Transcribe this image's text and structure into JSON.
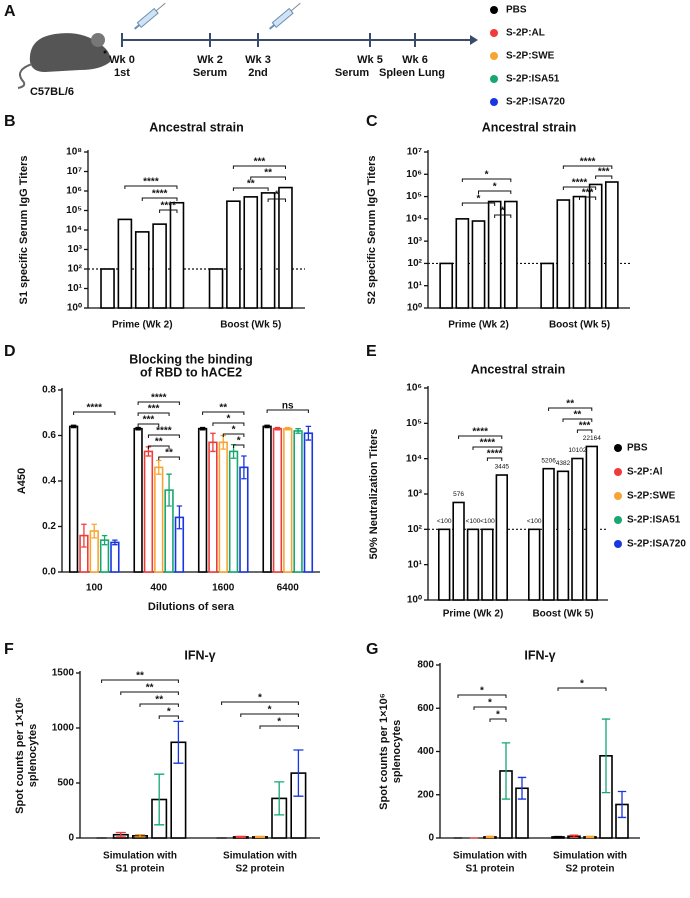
{
  "timeline": {
    "panel": "A",
    "strain": "C57BL/6",
    "points": [
      {
        "label": "Wk 0",
        "sub": "1st",
        "color": "#e02020"
      },
      {
        "label": "Wk 2",
        "sub": "Serum",
        "color": "#111111"
      },
      {
        "label": "Wk 3",
        "sub": "2nd",
        "color": "#e02020"
      },
      {
        "label": "Wk 5",
        "sub": "Serum",
        "color": "#111111"
      },
      {
        "label": "Wk 6",
        "sub": "Spleen Lung",
        "color": "#111111"
      }
    ]
  },
  "legend": [
    {
      "name": "PBS",
      "color": "#000000"
    },
    {
      "name": "S-2P:AL",
      "color": "#ef3b3b"
    },
    {
      "name": "S-2P:SWE",
      "color": "#f7a531"
    },
    {
      "name": "S-2P:ISA51",
      "color": "#16a870"
    },
    {
      "name": "S-2P:ISA720",
      "color": "#1936e0"
    }
  ],
  "chart_data": [
    {
      "panel": "B",
      "type": "bar",
      "title": "Ancestral strain",
      "ylabel": "S1 specific Serum IgG Titers",
      "log": true,
      "ylim": [
        1,
        100000000
      ],
      "yticks": [
        {
          "value": 1,
          "label": "10⁰"
        },
        {
          "value": 10,
          "label": "10¹"
        },
        {
          "value": 100,
          "label": "10²"
        },
        {
          "value": 1000,
          "label": "10³"
        },
        {
          "value": 10000,
          "label": "10⁴"
        },
        {
          "value": 100000,
          "label": "10⁵"
        },
        {
          "value": 1000000,
          "label": "10⁶"
        },
        {
          "value": 10000000,
          "label": "10⁷"
        },
        {
          "value": 100000000,
          "label": "10⁸"
        }
      ],
      "categories": [
        "Prime (Wk 2)",
        "Boost (Wk 5)"
      ],
      "edgecolor": "#000000",
      "reference_line": 100,
      "series": [
        {
          "color": "#000000",
          "values": [
            100,
            100
          ]
        },
        {
          "color": "#ef3b3b",
          "values": [
            35000,
            300000
          ]
        },
        {
          "color": "#f7a531",
          "values": [
            8000,
            500000
          ]
        },
        {
          "color": "#16a870",
          "values": [
            20000,
            800000
          ]
        },
        {
          "color": "#1936e0",
          "values": [
            250000,
            1500000
          ]
        }
      ],
      "annotations": [
        "****",
        "****",
        "****",
        "***",
        "**",
        "**",
        "*"
      ]
    },
    {
      "panel": "C",
      "type": "bar",
      "title": "Ancestral strain",
      "ylabel": "S2 specific Serum IgG Titers",
      "log": true,
      "ylim": [
        1,
        10000000
      ],
      "yticks": [
        {
          "value": 1,
          "label": "10⁰"
        },
        {
          "value": 10,
          "label": "10¹"
        },
        {
          "value": 100,
          "label": "10²"
        },
        {
          "value": 1000,
          "label": "10³"
        },
        {
          "value": 10000,
          "label": "10⁴"
        },
        {
          "value": 100000,
          "label": "10⁵"
        },
        {
          "value": 1000000,
          "label": "10⁶"
        },
        {
          "value": 10000000,
          "label": "10⁷"
        }
      ],
      "categories": [
        "Prime (Wk 2)",
        "Boost (Wk 5)"
      ],
      "edgecolor": "#000000",
      "reference_line": 100,
      "series": [
        {
          "color": "#000000",
          "values": [
            100,
            100
          ]
        },
        {
          "color": "#ef3b3b",
          "values": [
            10000,
            70000
          ]
        },
        {
          "color": "#f7a531",
          "values": [
            8000,
            100000
          ]
        },
        {
          "color": "#16a870",
          "values": [
            60000,
            350000
          ]
        },
        {
          "color": "#1936e0",
          "values": [
            60000,
            450000
          ]
        }
      ],
      "annotations": [
        "*",
        "*",
        "*",
        "*",
        "****",
        "***",
        "****",
        "***"
      ]
    },
    {
      "panel": "D",
      "type": "bar",
      "title": [
        "Blocking the binding",
        "of RBD to hACE2"
      ],
      "ylabel": "A450",
      "xlabel": "Dilutions of sera",
      "log": false,
      "ylim": [
        0,
        0.8
      ],
      "yticks": [
        {
          "value": 0,
          "label": "0.0"
        },
        {
          "value": 0.2,
          "label": "0.2"
        },
        {
          "value": 0.4,
          "label": "0.4"
        },
        {
          "value": 0.6,
          "label": "0.6"
        },
        {
          "value": 0.8,
          "label": "0.8"
        }
      ],
      "categories": [
        "100",
        "400",
        "1600",
        "6400"
      ],
      "series": [
        {
          "color": "#000000",
          "values": [
            0.64,
            0.63,
            0.63,
            0.64
          ],
          "errors": [
            0.005,
            0.005,
            0.005,
            0.005
          ]
        },
        {
          "color": "#ef3b3b",
          "values": [
            0.16,
            0.53,
            0.57,
            0.63
          ],
          "errors": [
            0.05,
            0.02,
            0.04,
            0.005
          ]
        },
        {
          "color": "#f7a531",
          "values": [
            0.18,
            0.46,
            0.57,
            0.63
          ],
          "errors": [
            0.03,
            0.03,
            0.03,
            0.005
          ]
        },
        {
          "color": "#16a870",
          "values": [
            0.14,
            0.36,
            0.53,
            0.62
          ],
          "errors": [
            0.02,
            0.07,
            0.03,
            0.01
          ]
        },
        {
          "color": "#1936e0",
          "values": [
            0.13,
            0.24,
            0.46,
            0.61
          ],
          "errors": [
            0.01,
            0.05,
            0.05,
            0.03
          ]
        }
      ],
      "annotations": [
        "****",
        "****",
        "***",
        "***",
        "****",
        "**",
        "**",
        "**",
        "*",
        "*",
        "*",
        "ns"
      ]
    },
    {
      "panel": "E",
      "type": "bar",
      "title": "Ancestral strain",
      "ylabel": "50% Neutralization Titers",
      "log": true,
      "ylim": [
        1,
        1000000
      ],
      "yticks": [
        {
          "value": 1,
          "label": "10⁰"
        },
        {
          "value": 10,
          "label": "10¹"
        },
        {
          "value": 100,
          "label": "10²"
        },
        {
          "value": 1000,
          "label": "10³"
        },
        {
          "value": 10000,
          "label": "10⁴"
        },
        {
          "value": 100000,
          "label": "10⁵"
        },
        {
          "value": 1000000,
          "label": "10⁶"
        }
      ],
      "categories": [
        "Prime (Wk 2)",
        "Boost (Wk 5)"
      ],
      "edgecolor": "#000000",
      "reference_line": 100,
      "legend": "right",
      "series": [
        {
          "name": "PBS",
          "color": "#000000",
          "values": [
            100,
            100
          ],
          "value_labels": [
            "<100",
            "<100"
          ]
        },
        {
          "name": "S-2P:Al",
          "color": "#ef3b3b",
          "values": [
            576,
            5206
          ],
          "value_labels": [
            "576",
            "5206"
          ]
        },
        {
          "name": "S-2P:SWE",
          "color": "#f7a531",
          "values": [
            100,
            4382
          ],
          "value_labels": [
            "<100",
            "4382"
          ]
        },
        {
          "name": "S-2P:ISA51",
          "color": "#16a870",
          "values": [
            100,
            10102
          ],
          "value_labels": [
            "<100",
            "10102"
          ]
        },
        {
          "name": "S-2P:ISA720",
          "color": "#1936e0",
          "values": [
            3445,
            22164
          ],
          "value_labels": [
            "3445",
            "22164"
          ]
        }
      ],
      "annotations": [
        "****",
        "****",
        "****",
        "**",
        "**",
        "***"
      ]
    },
    {
      "panel": "F",
      "type": "bar",
      "title": "IFN-γ",
      "ylabel": [
        "Spot counts per 1×10⁶",
        "splenocytes"
      ],
      "log": false,
      "ylim": [
        0,
        1500
      ],
      "yticks": [
        0,
        500,
        1000,
        1500
      ],
      "categories": [
        [
          "Simulation with",
          "S1 protein"
        ],
        [
          "Simulation with",
          "S2 protein"
        ]
      ],
      "edgecolor": "#000000",
      "series": [
        {
          "color": "#000000",
          "values": [
            0,
            0
          ],
          "errors": [
            0,
            0
          ]
        },
        {
          "color": "#ef3b3b",
          "values": [
            30,
            10
          ],
          "errors": [
            20,
            5
          ]
        },
        {
          "color": "#f7a531",
          "values": [
            20,
            10
          ],
          "errors": [
            10,
            5
          ]
        },
        {
          "color": "#16a870",
          "values": [
            350,
            360
          ],
          "errors": [
            230,
            150
          ]
        },
        {
          "color": "#1936e0",
          "values": [
            870,
            590
          ],
          "errors": [
            190,
            210
          ]
        }
      ],
      "annotations": [
        "**",
        "**",
        "**",
        "*",
        "*",
        "*",
        "*"
      ]
    },
    {
      "panel": "G",
      "type": "bar",
      "title": "IFN-γ",
      "ylabel": [
        "Spot counts per 1×10⁶",
        "splenocytes"
      ],
      "log": false,
      "ylim": [
        0,
        800
      ],
      "yticks": [
        0,
        200,
        400,
        600,
        800
      ],
      "categories": [
        [
          "Simulation with",
          "S1 protein"
        ],
        [
          "Simulation with",
          "S2 protein"
        ]
      ],
      "edgecolor": "#000000",
      "series": [
        {
          "color": "#000000",
          "values": [
            0,
            5
          ],
          "errors": [
            0,
            2
          ]
        },
        {
          "color": "#ef3b3b",
          "values": [
            0,
            8
          ],
          "errors": [
            0,
            5
          ]
        },
        {
          "color": "#f7a531",
          "values": [
            5,
            5
          ],
          "errors": [
            3,
            3
          ]
        },
        {
          "color": "#16a870",
          "values": [
            310,
            380
          ],
          "errors": [
            130,
            170
          ]
        },
        {
          "color": "#1936e0",
          "values": [
            230,
            155
          ],
          "errors": [
            50,
            60
          ]
        }
      ],
      "annotations": [
        "*",
        "*",
        "*",
        "*"
      ]
    }
  ]
}
